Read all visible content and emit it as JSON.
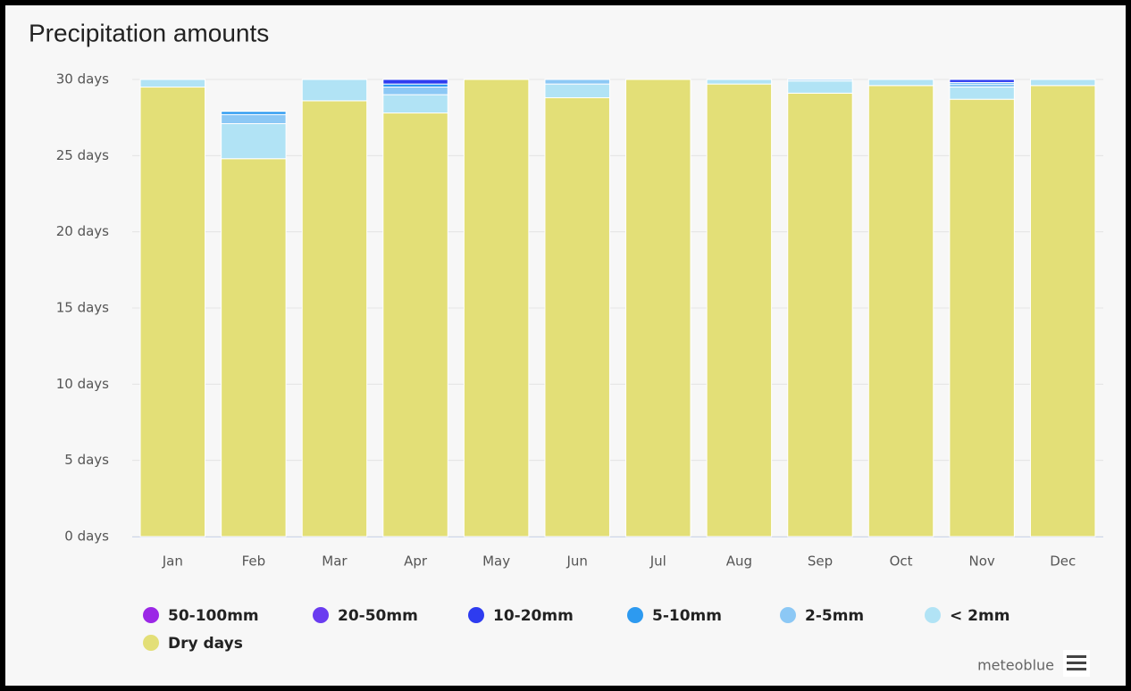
{
  "chart_data": {
    "type": "bar",
    "stacked": true,
    "title": "Precipitation amounts",
    "categories": [
      "Jan",
      "Feb",
      "Mar",
      "Apr",
      "May",
      "Jun",
      "Jul",
      "Aug",
      "Sep",
      "Oct",
      "Nov",
      "Dec"
    ],
    "series": [
      {
        "name": "50-100mm",
        "color": "#9b27e6",
        "values": [
          0,
          0,
          0,
          0,
          0,
          0,
          0,
          0,
          0,
          0,
          0,
          0
        ]
      },
      {
        "name": "20-50mm",
        "color": "#6a3cf0",
        "values": [
          0,
          0,
          0,
          0,
          0,
          0,
          0,
          0,
          0,
          0,
          0,
          0
        ]
      },
      {
        "name": "10-20mm",
        "color": "#2e3cf0",
        "values": [
          0,
          0,
          0,
          0.3,
          0,
          0,
          0,
          0,
          0,
          0,
          0.2,
          0
        ]
      },
      {
        "name": "5-10mm",
        "color": "#2d9af0",
        "values": [
          0,
          0.2,
          0,
          0.2,
          0,
          0,
          0,
          0,
          0,
          0,
          0.1,
          0
        ]
      },
      {
        "name": "2-5mm",
        "color": "#8cc8f5",
        "values": [
          0,
          0.6,
          0,
          0.5,
          0,
          0.3,
          0,
          0,
          0.1,
          0,
          0.2,
          0
        ]
      },
      {
        "name": "< 2mm",
        "color": "#b1e3f5",
        "values": [
          0.5,
          2.3,
          1.4,
          1.2,
          0,
          0.9,
          0,
          0.3,
          0.8,
          0.4,
          0.8,
          0.4
        ]
      },
      {
        "name": "Dry days",
        "color": "#e3df77",
        "values": [
          29.5,
          24.8,
          28.6,
          27.8,
          30,
          28.8,
          30,
          29.7,
          29.1,
          29.6,
          28.7,
          29.6
        ]
      }
    ],
    "ylim": [
      0,
      30
    ],
    "yticks": [
      {
        "value": 0,
        "label": "0 days"
      },
      {
        "value": 5,
        "label": "5 days"
      },
      {
        "value": 10,
        "label": "10 days"
      },
      {
        "value": 15,
        "label": "15 days"
      },
      {
        "value": 20,
        "label": "20 days"
      },
      {
        "value": 25,
        "label": "25 days"
      },
      {
        "value": 30,
        "label": "30 days"
      }
    ],
    "grid": true,
    "credit": "meteoblue"
  }
}
